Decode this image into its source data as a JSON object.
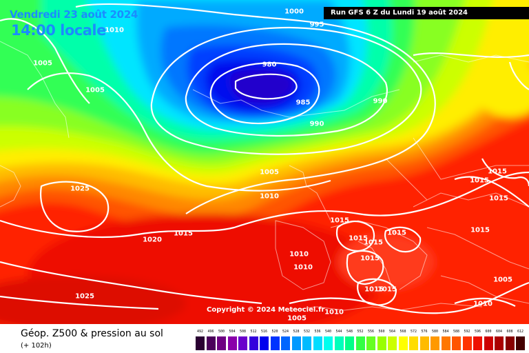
{
  "header": {
    "date": "Vendredi 23 août 2024",
    "time": "14:00 locale",
    "run": "Run GFS 6 Z du Lundi 19 août 2024"
  },
  "copyright": "Copyright © 2024 Meteociel.fr",
  "legend": {
    "title": "Géop. Z500 & pression au sol",
    "subtitle": "(+ 102h)",
    "scale_labels": [
      "492",
      "496",
      "500",
      "504",
      "508",
      "512",
      "516",
      "520",
      "524",
      "528",
      "532",
      "536",
      "540",
      "544",
      "548",
      "552",
      "556",
      "560",
      "564",
      "568",
      "572",
      "576",
      "580",
      "584",
      "588",
      "592",
      "596",
      "600",
      "604",
      "608",
      "612"
    ],
    "scale_colors": [
      "#2a0032",
      "#4b005a",
      "#6e0082",
      "#8a00aa",
      "#6a00cc",
      "#3300dd",
      "#0000ee",
      "#0033ff",
      "#0066ff",
      "#0099ff",
      "#00bbff",
      "#00ddff",
      "#00ffee",
      "#00ffbb",
      "#00ff88",
      "#33ff44",
      "#66ff22",
      "#99ff00",
      "#ccff00",
      "#ffff00",
      "#ffdd00",
      "#ffbb00",
      "#ff9900",
      "#ff7700",
      "#ff5500",
      "#ff3300",
      "#ee1100",
      "#cc0000",
      "#aa0000",
      "#880000",
      "#440000"
    ]
  },
  "isobars": [
    {
      "value": "1000"
    },
    {
      "value": "995"
    },
    {
      "value": "1010"
    },
    {
      "value": "1005"
    },
    {
      "value": "1005"
    },
    {
      "value": "980"
    },
    {
      "value": "985"
    },
    {
      "value": "990"
    },
    {
      "value": "990"
    },
    {
      "value": "1005"
    },
    {
      "value": "1010"
    },
    {
      "value": "1025"
    },
    {
      "value": "1015"
    },
    {
      "value": "1020"
    },
    {
      "value": "1015"
    },
    {
      "value": "1015"
    },
    {
      "value": "1015"
    },
    {
      "value": "1015"
    },
    {
      "value": "1015"
    },
    {
      "value": "1015"
    },
    {
      "value": "1015"
    },
    {
      "value": "1015"
    },
    {
      "value": "1010"
    },
    {
      "value": "1010"
    },
    {
      "value": "1015"
    },
    {
      "value": "1015"
    },
    {
      "value": "1015"
    },
    {
      "value": "1025"
    },
    {
      "value": "1005"
    },
    {
      "value": "1010"
    },
    {
      "value": "1005"
    },
    {
      "value": "1010"
    }
  ]
}
